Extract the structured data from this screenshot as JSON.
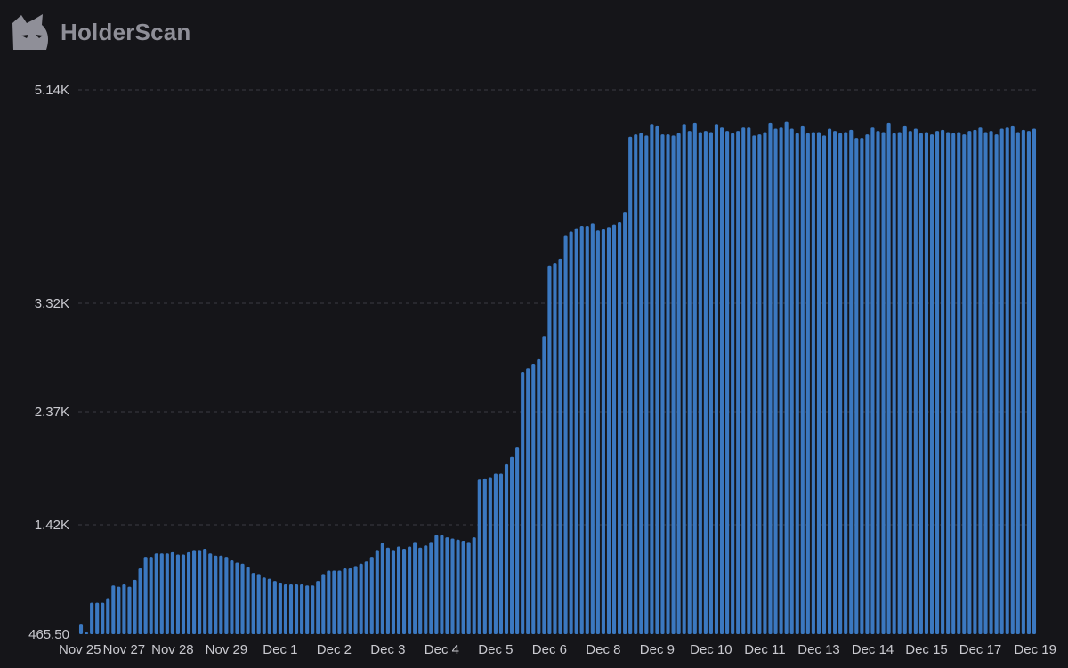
{
  "brand": {
    "name": "HolderScan",
    "logo_icon": "cat-head-logo-icon"
  },
  "colors": {
    "background": "#151519",
    "bar": "#3b78c0",
    "bar_highlight": "#4a86cf",
    "grid": "#3a3a42",
    "text": "#c9c9cf"
  },
  "chart_data": {
    "type": "bar",
    "title": "",
    "xlabel": "",
    "ylabel": "",
    "grid": true,
    "y_ticks": [
      {
        "value": 465.5,
        "label": "465.50"
      },
      {
        "value": 1420,
        "label": "1.42K"
      },
      {
        "value": 2370,
        "label": "2.37K"
      },
      {
        "value": 3320,
        "label": "3.32K"
      },
      {
        "value": 5140,
        "label": "5.14K"
      }
    ],
    "x_tick_labels": [
      "Nov 25",
      "Nov 27",
      "Nov 28",
      "Nov 29",
      "Dec 1",
      "Dec 2",
      "Dec 3",
      "Dec 4",
      "Dec 5",
      "Dec 6",
      "Dec 8",
      "Dec 9",
      "Dec 10",
      "Dec 11",
      "Dec 13",
      "Dec 14",
      "Dec 15",
      "Dec 17",
      "Dec 19"
    ],
    "x_tick_positions": [
      0,
      8,
      17,
      27,
      37,
      47,
      57,
      67,
      77,
      87,
      97,
      107,
      117,
      127,
      137,
      147,
      157,
      167,
      177
    ],
    "values": [
      550,
      465.5,
      740,
      740,
      740,
      780,
      890,
      880,
      900,
      880,
      940,
      1040,
      1140,
      1140,
      1170,
      1170,
      1170,
      1180,
      1160,
      1160,
      1180,
      1200,
      1200,
      1210,
      1170,
      1150,
      1150,
      1140,
      1110,
      1090,
      1080,
      1050,
      1000,
      990,
      960,
      950,
      930,
      910,
      900,
      900,
      900,
      900,
      890,
      890,
      930,
      990,
      1020,
      1020,
      1020,
      1040,
      1040,
      1060,
      1080,
      1100,
      1140,
      1200,
      1260,
      1220,
      1200,
      1230,
      1210,
      1230,
      1270,
      1220,
      1240,
      1270,
      1330,
      1330,
      1310,
      1300,
      1290,
      1280,
      1270,
      1310,
      1800,
      1810,
      1820,
      1850,
      1850,
      1930,
      1990,
      2070,
      2720,
      2750,
      2790,
      2830,
      3030,
      3640,
      3660,
      3700,
      3900,
      3930,
      3960,
      3980,
      3980,
      4000,
      3940,
      3950,
      3970,
      3990,
      4010,
      4100,
      4740,
      4760,
      4770,
      4750,
      4850,
      4830,
      4760,
      4760,
      4750,
      4770,
      4850,
      4790,
      4860,
      4780,
      4790,
      4780,
      4850,
      4820,
      4790,
      4770,
      4790,
      4820,
      4820,
      4750,
      4760,
      4780,
      4860,
      4810,
      4820,
      4870,
      4810,
      4770,
      4830,
      4770,
      4780,
      4780,
      4750,
      4810,
      4790,
      4770,
      4780,
      4800,
      4730,
      4730,
      4760,
      4820,
      4790,
      4780,
      4860,
      4770,
      4780,
      4830,
      4790,
      4810,
      4770,
      4780,
      4760,
      4790,
      4800,
      4780,
      4770,
      4780,
      4760,
      4790,
      4800,
      4820,
      4780,
      4790,
      4760,
      4810,
      4820,
      4830,
      4780,
      4800,
      4790,
      4810
    ]
  }
}
